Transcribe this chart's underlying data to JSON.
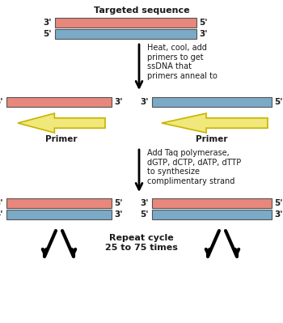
{
  "title": "Targeted sequence",
  "background_color": "#ffffff",
  "salmon_color": "#E8877B",
  "blue_color": "#7BAAC8",
  "yellow_color": "#F0E87A",
  "yellow_edge": "#C8B400",
  "text_color": "#1a1a1a",
  "step1_text": "Heat, cool, add\nprimers to get\nssDNA that\nprimers anneal to",
  "step2_text": "Add Taq polymerase,\ndGTP, dCTP, dATP, dTTP\nto synthesize\ncomplimentary strand",
  "step3_text": "Repeat cycle\n25 to 75 times",
  "primer_text": "Primer"
}
